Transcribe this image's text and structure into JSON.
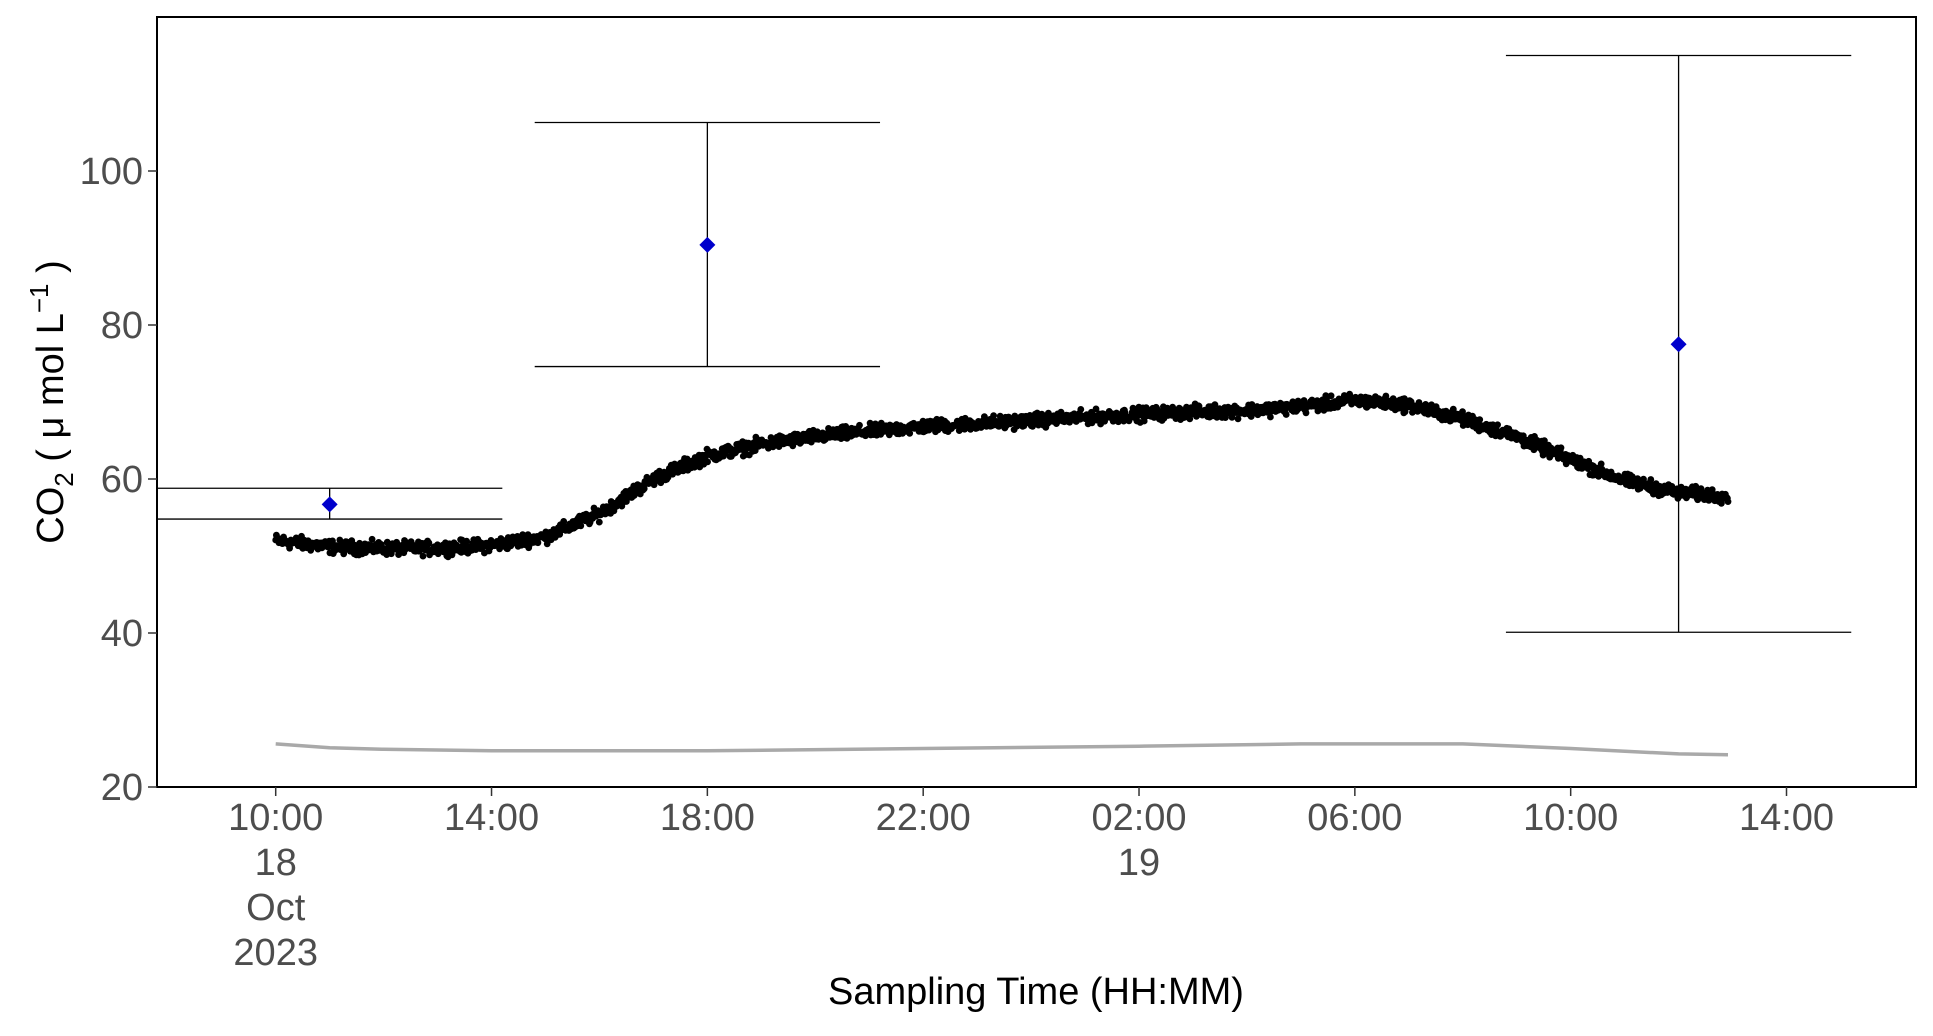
{
  "chart_data": {
    "type": "scatter",
    "title": "",
    "xlabel": "Sampling Time (HH:MM)",
    "ylabel": {
      "prefix": "CO",
      "subscript": "2",
      "unit_open": " ( ",
      "mu": "μ",
      "unit_text": " mol L",
      "superscript": "−1",
      "unit_close": " )"
    },
    "x_axis": {
      "type": "datetime",
      "range": [
        "2023-10-18T07:48:00",
        "2023-10-19T16:24:00"
      ],
      "ticks": [
        {
          "t": "2023-10-18T10:00:00",
          "lines": [
            "10:00",
            "18",
            "Oct",
            "2023"
          ]
        },
        {
          "t": "2023-10-18T14:00:00",
          "lines": [
            "14:00"
          ]
        },
        {
          "t": "2023-10-18T18:00:00",
          "lines": [
            "18:00"
          ]
        },
        {
          "t": "2023-10-18T22:00:00",
          "lines": [
            "22:00"
          ]
        },
        {
          "t": "2023-10-19T02:00:00",
          "lines": [
            "02:00",
            "19"
          ]
        },
        {
          "t": "2023-10-19T06:00:00",
          "lines": [
            "06:00"
          ]
        },
        {
          "t": "2023-10-19T10:00:00",
          "lines": [
            "10:00"
          ]
        },
        {
          "t": "2023-10-19T14:00:00",
          "lines": [
            "14:00"
          ]
        }
      ]
    },
    "y_axis": {
      "range": [
        20,
        120
      ],
      "ticks": [
        20,
        40,
        60,
        80,
        100
      ]
    },
    "grid": false,
    "legend": "none",
    "colors": {
      "sensor_points": "#000000",
      "discrete_samples": "#0000CC",
      "error_bars": "#000000",
      "reference_line": "#A9A9A9",
      "panel_border": "#000000"
    },
    "series": [
      {
        "kind": "points",
        "x": [
          "2023-10-18T10:00:00",
          "2023-10-18T11:00:00",
          "2023-10-18T12:00:00",
          "2023-10-18T13:00:00",
          "2023-10-18T14:00:00",
          "2023-10-18T15:00:00",
          "2023-10-18T16:00:00",
          "2023-10-18T17:00:00",
          "2023-10-18T18:00:00",
          "2023-10-18T19:00:00",
          "2023-10-18T20:00:00",
          "2023-10-18T21:00:00",
          "2023-10-18T22:00:00",
          "2023-10-18T23:00:00",
          "2023-10-19T00:00:00",
          "2023-10-19T01:00:00",
          "2023-10-19T02:00:00",
          "2023-10-19T03:00:00",
          "2023-10-19T04:00:00",
          "2023-10-19T05:00:00",
          "2023-10-19T06:00:00",
          "2023-10-19T07:00:00",
          "2023-10-19T08:00:00",
          "2023-10-19T09:00:00",
          "2023-10-19T10:00:00",
          "2023-10-19T11:00:00",
          "2023-10-19T12:00:00",
          "2023-10-19T12:55:00"
        ],
        "y": [
          52,
          51.2,
          51,
          51,
          51.4,
          52.5,
          55.5,
          60,
          63,
          64.5,
          65.5,
          66.2,
          66.8,
          67.2,
          67.6,
          68,
          68.4,
          68.7,
          68.9,
          69.4,
          70.2,
          69.6,
          67.8,
          65.5,
          62.5,
          59.8,
          58.2,
          57.8
        ],
        "spread": 0.6
      },
      {
        "kind": "line",
        "x": [
          "2023-10-18T10:00:00",
          "2023-10-18T11:00:00",
          "2023-10-18T12:00:00",
          "2023-10-18T14:00:00",
          "2023-10-18T18:00:00",
          "2023-10-18T22:00:00",
          "2023-10-19T02:00:00",
          "2023-10-19T05:00:00",
          "2023-10-19T08:00:00",
          "2023-10-19T10:00:00",
          "2023-10-19T12:00:00",
          "2023-10-19T12:55:00"
        ],
        "y": [
          25.6,
          25.1,
          24.9,
          24.7,
          24.7,
          25,
          25.3,
          25.6,
          25.6,
          25,
          24.3,
          24.2
        ]
      },
      {
        "kind": "discrete",
        "x": [
          "2023-10-18T11:00:00",
          "2023-10-18T18:00:00",
          "2023-10-19T12:00:00"
        ],
        "y": [
          56.7,
          90.4,
          77.5
        ],
        "ymin": [
          54.8,
          74.6,
          40.1
        ],
        "ymax": [
          58.8,
          106.3,
          115.0
        ],
        "cap_halfwidth_hours": 3.2
      }
    ]
  }
}
